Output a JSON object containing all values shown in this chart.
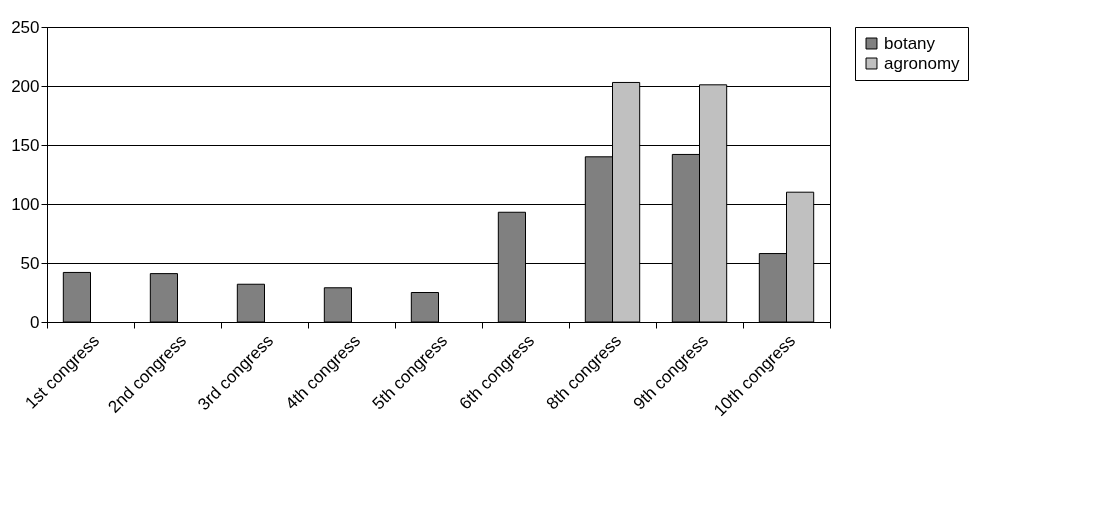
{
  "chart_data": {
    "type": "bar",
    "categories": [
      "1st congress",
      "2nd congress",
      "3rd congress",
      "4th congress",
      "5th congress",
      "6th congress",
      "8th congress",
      "9th congress",
      "10th congress"
    ],
    "series": [
      {
        "name": "botany",
        "color": "#808080",
        "values": [
          42,
          41,
          32,
          29,
          25,
          93,
          140,
          142,
          58
        ]
      },
      {
        "name": "agronomy",
        "color": "#c0c0c0",
        "values": [
          null,
          null,
          null,
          null,
          null,
          null,
          203,
          201,
          110
        ]
      }
    ],
    "ylim": [
      0,
      250
    ],
    "yticks": [
      0,
      50,
      100,
      150,
      200,
      250
    ],
    "grid": "y",
    "legend": "right"
  }
}
